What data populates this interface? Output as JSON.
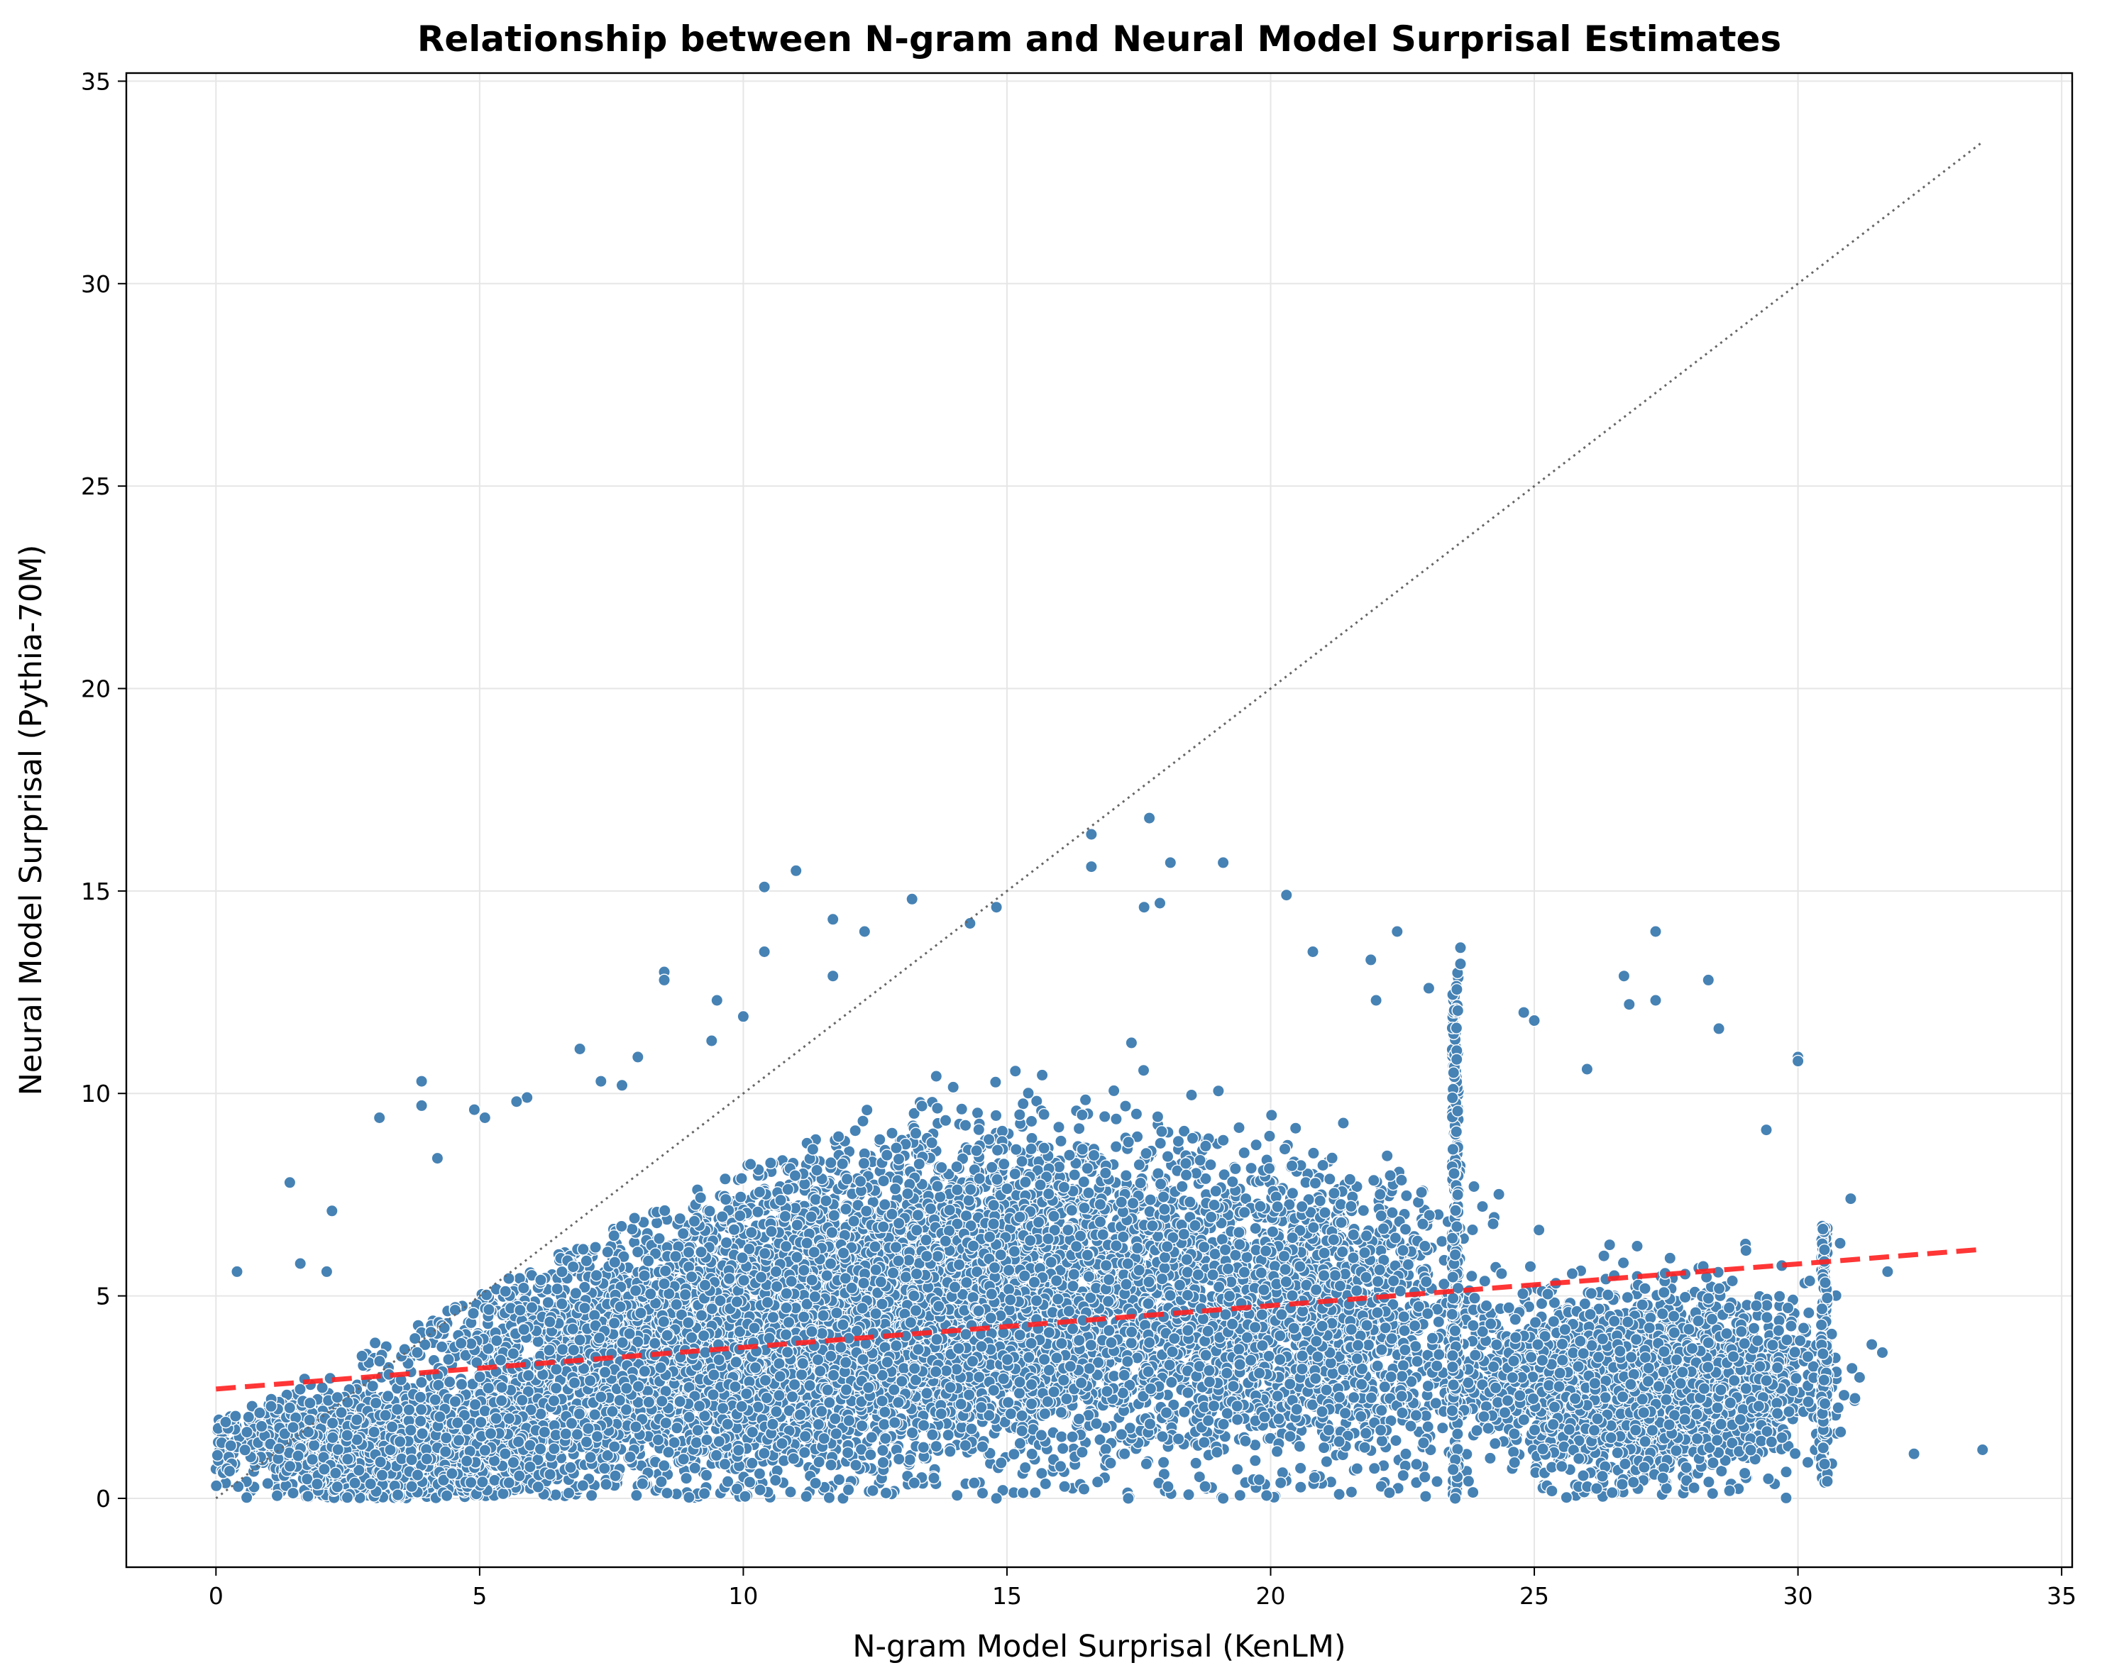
{
  "chart_data": {
    "type": "scatter",
    "title": "Relationship between N-gram and Neural Model Surprisal Estimates",
    "xlabel": "N-gram Model Surprisal (KenLM)",
    "ylabel": "Neural Model Surprisal (Pythia-70M)",
    "xlim": [
      -1.7,
      35.2
    ],
    "ylim": [
      -1.7,
      35.2
    ],
    "xticks": [
      0,
      5,
      10,
      15,
      20,
      25,
      30,
      35
    ],
    "yticks": [
      0,
      5,
      10,
      15,
      20,
      25,
      30,
      35
    ],
    "grid": true,
    "legend": "none",
    "colors": {
      "points": "#4682b4",
      "point_edge": "#ffffff",
      "regression_line": "#ff2020",
      "identity_line": "#666666",
      "grid": "#e6e6e6"
    },
    "regression_line": {
      "style": "dashed",
      "x": [
        0,
        33.5
      ],
      "y": [
        2.7,
        6.15
      ]
    },
    "identity_line": {
      "style": "dotted",
      "x": [
        0,
        33.5
      ],
      "y": [
        0,
        33.5
      ]
    },
    "outlier_points": [
      [
        17.7,
        16.8
      ],
      [
        16.6,
        16.4
      ],
      [
        16.6,
        15.6
      ],
      [
        18.1,
        15.7
      ],
      [
        19.1,
        15.7
      ],
      [
        11.0,
        15.5
      ],
      [
        10.4,
        15.1
      ],
      [
        20.3,
        14.9
      ],
      [
        13.2,
        14.8
      ],
      [
        14.8,
        14.6
      ],
      [
        17.6,
        14.6
      ],
      [
        17.9,
        14.7
      ],
      [
        12.3,
        14.0
      ],
      [
        11.7,
        14.3
      ],
      [
        14.3,
        14.2
      ],
      [
        22.4,
        14.0
      ],
      [
        27.3,
        14.0
      ],
      [
        10.4,
        13.5
      ],
      [
        23.6,
        13.6
      ],
      [
        23.6,
        13.2
      ],
      [
        8.5,
        13.0
      ],
      [
        8.5,
        12.8
      ],
      [
        11.7,
        12.9
      ],
      [
        26.7,
        12.9
      ],
      [
        28.3,
        12.8
      ],
      [
        9.5,
        12.3
      ],
      [
        24.8,
        12.0
      ],
      [
        25.0,
        11.8
      ],
      [
        28.5,
        11.6
      ],
      [
        26.8,
        12.2
      ],
      [
        27.3,
        12.3
      ],
      [
        10.0,
        11.9
      ],
      [
        30.0,
        10.9
      ],
      [
        30.0,
        10.8
      ],
      [
        26.0,
        10.6
      ],
      [
        3.9,
        10.3
      ],
      [
        3.9,
        9.7
      ],
      [
        5.9,
        9.9
      ],
      [
        5.7,
        9.8
      ],
      [
        4.9,
        9.6
      ],
      [
        5.1,
        9.4
      ],
      [
        3.1,
        9.4
      ],
      [
        4.2,
        8.4
      ],
      [
        1.4,
        7.8
      ],
      [
        2.2,
        7.1
      ],
      [
        0.4,
        5.6
      ],
      [
        1.6,
        5.8
      ],
      [
        2.1,
        5.6
      ],
      [
        31.7,
        5.6
      ],
      [
        32.2,
        1.1
      ],
      [
        33.5,
        1.2
      ],
      [
        31.6,
        3.6
      ],
      [
        31.4,
        3.8
      ],
      [
        31.0,
        7.4
      ],
      [
        30.8,
        6.3
      ],
      [
        23.5,
        0.0
      ],
      [
        19.1,
        0.0
      ],
      [
        14.8,
        0.0
      ],
      [
        17.3,
        0.0
      ],
      [
        21.3,
        0.1
      ],
      [
        6.9,
        11.1
      ],
      [
        8.0,
        10.9
      ],
      [
        7.3,
        10.3
      ],
      [
        7.7,
        10.2
      ],
      [
        23.0,
        12.6
      ],
      [
        21.9,
        13.3
      ],
      [
        22.0,
        12.3
      ],
      [
        20.8,
        13.5
      ],
      [
        9.4,
        11.3
      ],
      [
        29.4,
        9.1
      ]
    ],
    "dense_clusters": [
      {
        "x_center": 14.5,
        "x_spread": 5.8,
        "y_center": 5.0,
        "y_spread": 3.2,
        "count": 5500
      },
      {
        "x_center": 9.0,
        "x_spread": 4.0,
        "y_center": 3.2,
        "y_spread": 2.2,
        "count": 3000
      },
      {
        "x_center": 3.5,
        "x_spread": 2.6,
        "y_center": 1.3,
        "y_spread": 1.1,
        "count": 1800
      },
      {
        "x_center": 27.0,
        "x_spread": 2.6,
        "y_center": 2.8,
        "y_spread": 1.8,
        "count": 2500
      },
      {
        "x_center": 21.0,
        "x_spread": 2.2,
        "y_center": 4.2,
        "y_spread": 2.8,
        "count": 1200
      }
    ],
    "vertical_stripes": [
      {
        "x": 23.5,
        "y_min": 0.1,
        "y_max": 13.0,
        "count": 220
      },
      {
        "x": 30.5,
        "y_min": 0.3,
        "y_max": 6.8,
        "count": 120
      }
    ]
  }
}
